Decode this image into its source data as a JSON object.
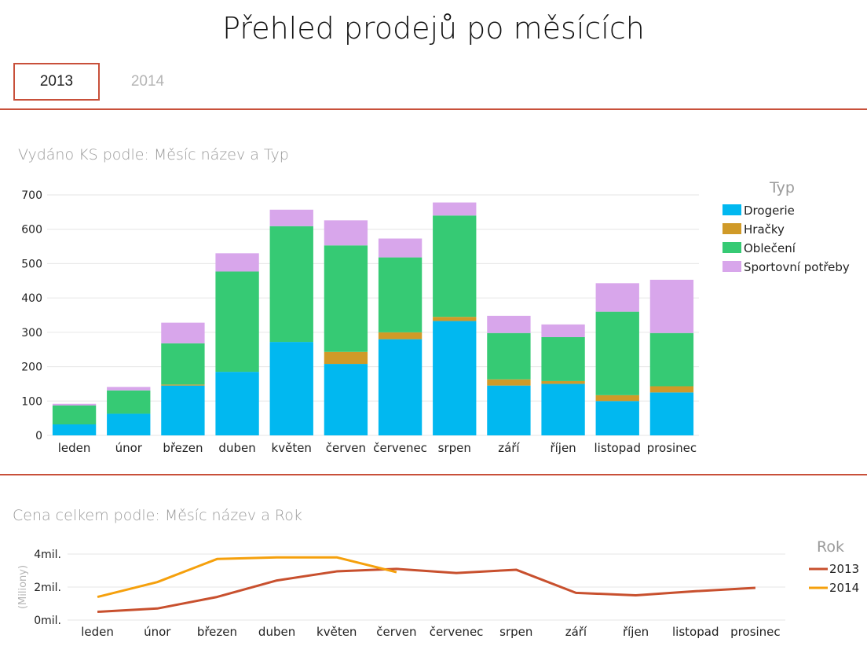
{
  "page": {
    "title": "Přehled prodejů po měsících"
  },
  "tabs": [
    {
      "label": "2013",
      "active": true
    },
    {
      "label": "2014",
      "active": false
    }
  ],
  "colors": {
    "accent": "#c8503a"
  },
  "chart_data": [
    {
      "type": "bar",
      "stacked": true,
      "title": "Vydáno KS podle: Měsíc název a Typ",
      "categories": [
        "leden",
        "únor",
        "březen",
        "duben",
        "květen",
        "červen",
        "červenec",
        "srpen",
        "září",
        "říjen",
        "listopad",
        "prosinec"
      ],
      "ylim": [
        0,
        700
      ],
      "yticks": [
        0,
        100,
        200,
        300,
        400,
        500,
        600,
        700
      ],
      "grid": true,
      "legend": {
        "title": "Typ",
        "position": "right"
      },
      "series": [
        {
          "name": "Drogerie",
          "color": "#01b8f0",
          "values": [
            32,
            63,
            145,
            185,
            272,
            208,
            280,
            333,
            145,
            150,
            100,
            125
          ]
        },
        {
          "name": "Hračky",
          "color": "#d09a28",
          "values": [
            0,
            0,
            3,
            0,
            0,
            35,
            20,
            12,
            18,
            8,
            17,
            18
          ]
        },
        {
          "name": "Oblečení",
          "color": "#36ca74",
          "values": [
            55,
            68,
            120,
            292,
            337,
            310,
            218,
            295,
            135,
            128,
            243,
            155
          ]
        },
        {
          "name": "Sportovní potřeby",
          "color": "#d8a6eb",
          "values": [
            5,
            10,
            60,
            53,
            48,
            73,
            55,
            38,
            50,
            37,
            83,
            155
          ]
        }
      ]
    },
    {
      "type": "line",
      "title": "Cena celkem podle: Měsíc název a Rok",
      "categories": [
        "leden",
        "únor",
        "březen",
        "duben",
        "květen",
        "červen",
        "červenec",
        "srpen",
        "září",
        "říjen",
        "listopad",
        "prosinec"
      ],
      "ylabel": "(Miliony)",
      "ylim": [
        0,
        4
      ],
      "yticks": [
        0,
        2,
        4
      ],
      "ytick_labels": [
        "0mil.",
        "2mil.",
        "4mil."
      ],
      "grid": true,
      "legend": {
        "title": "Rok",
        "position": "right"
      },
      "series": [
        {
          "name": "2013",
          "color": "#c8502e",
          "values": [
            0.5,
            0.7,
            1.4,
            2.4,
            2.95,
            3.1,
            2.85,
            3.05,
            1.65,
            1.5,
            1.75,
            1.95
          ]
        },
        {
          "name": "2014",
          "color": "#f5a00c",
          "values": [
            1.4,
            2.3,
            3.7,
            3.8,
            3.8,
            2.9,
            null,
            null,
            null,
            null,
            null,
            null
          ]
        }
      ]
    }
  ]
}
